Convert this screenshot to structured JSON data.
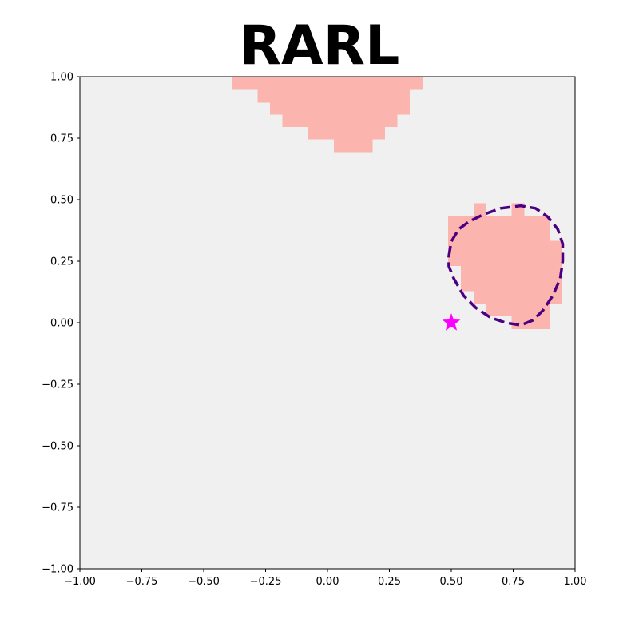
{
  "chart_data": {
    "type": "heatmap",
    "title": "RARL",
    "xlabel": "",
    "ylabel": "",
    "xlim": [
      -1.0,
      1.0
    ],
    "ylim": [
      -1.0,
      1.0
    ],
    "grid": false,
    "legend": "none",
    "x_ticks": [
      "−1.00",
      "−0.75",
      "−0.50",
      "−0.25",
      "0.00",
      "0.25",
      "0.50",
      "0.75",
      "1.00"
    ],
    "y_ticks": [
      "−1.00",
      "−0.75",
      "−0.50",
      "−0.25",
      "0.00",
      "0.25",
      "0.50",
      "0.75",
      "1.00"
    ],
    "cell_size": 0.05263,
    "region_top": [
      {
        "y0": 0.947,
        "y1": 1.0,
        "x0": -0.384,
        "x1": 0.384
      },
      {
        "y0": 0.895,
        "y1": 0.947,
        "x0": -0.282,
        "x1": 0.333
      },
      {
        "y0": 0.845,
        "y1": 0.895,
        "x0": -0.232,
        "x1": 0.333
      },
      {
        "y0": 0.795,
        "y1": 0.845,
        "x0": -0.182,
        "x1": 0.282
      },
      {
        "y0": 0.745,
        "y1": 0.795,
        "x0": -0.077,
        "x1": 0.232
      },
      {
        "y0": 0.693,
        "y1": 0.745,
        "x0": 0.026,
        "x1": 0.182
      }
    ],
    "region_right": [
      {
        "y0": 0.435,
        "y1": 0.485,
        "x0": 0.59,
        "x1": 0.641
      },
      {
        "y0": 0.435,
        "y1": 0.485,
        "x0": 0.744,
        "x1": 0.795
      },
      {
        "y0": 0.333,
        "y1": 0.435,
        "x0": 0.487,
        "x1": 0.897
      },
      {
        "y0": 0.231,
        "y1": 0.333,
        "x0": 0.487,
        "x1": 0.949
      },
      {
        "y0": 0.128,
        "y1": 0.231,
        "x0": 0.538,
        "x1": 0.949
      },
      {
        "y0": 0.077,
        "y1": 0.128,
        "x0": 0.59,
        "x1": 0.949
      },
      {
        "y0": 0.026,
        "y1": 0.077,
        "x0": 0.641,
        "x1": 0.897
      },
      {
        "y0": -0.026,
        "y1": 0.026,
        "x0": 0.744,
        "x1": 0.897
      }
    ],
    "boundary_contour": [
      [
        0.49,
        0.27
      ],
      [
        0.5,
        0.33
      ],
      [
        0.53,
        0.38
      ],
      [
        0.57,
        0.41
      ],
      [
        0.63,
        0.44
      ],
      [
        0.7,
        0.465
      ],
      [
        0.78,
        0.475
      ],
      [
        0.84,
        0.465
      ],
      [
        0.89,
        0.43
      ],
      [
        0.93,
        0.38
      ],
      [
        0.95,
        0.32
      ],
      [
        0.95,
        0.25
      ],
      [
        0.94,
        0.18
      ],
      [
        0.91,
        0.11
      ],
      [
        0.87,
        0.05
      ],
      [
        0.83,
        0.01
      ],
      [
        0.78,
        -0.01
      ],
      [
        0.72,
        0.0
      ],
      [
        0.66,
        0.02
      ],
      [
        0.6,
        0.06
      ],
      [
        0.55,
        0.11
      ],
      [
        0.51,
        0.18
      ],
      [
        0.49,
        0.23
      ],
      [
        0.49,
        0.27
      ]
    ],
    "marker": {
      "x": 0.5,
      "y": 0.0,
      "shape": "star"
    },
    "colors": {
      "background": "#f0f0f0",
      "region": "#fbb4ae",
      "contour": "#4b0082",
      "marker": "#ff00ff"
    }
  }
}
